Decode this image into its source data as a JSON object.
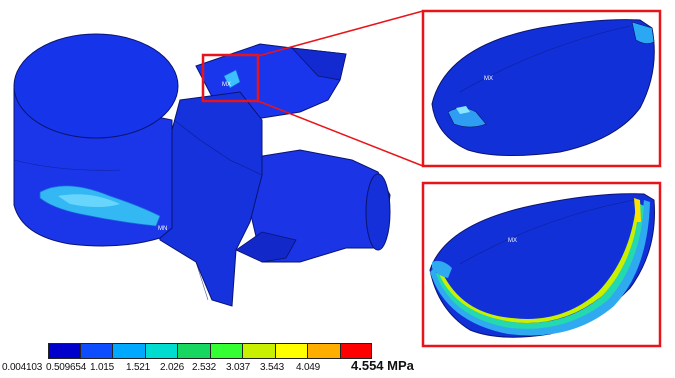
{
  "legend": {
    "colors": [
      "#0000cc",
      "#0d4dff",
      "#00a8ff",
      "#00dcd0",
      "#16d860",
      "#33ff33",
      "#c8f000",
      "#ffff00",
      "#ffae00",
      "#ff0000"
    ],
    "ticks": [
      "0.004103",
      "0.509654",
      "1.015",
      "1.521",
      "2.026",
      "2.532",
      "3.037",
      "3.543",
      "4.049",
      "4.554"
    ],
    "unit": "MPa"
  },
  "markers": {
    "main_top": "MX",
    "main_side": "MN",
    "zoom_top": "MX",
    "zoom_bottom": "MX"
  },
  "colors": {
    "callout": "#e8141b",
    "body": "#1830e0",
    "body_dark": "#0f22b8",
    "edge": "#0a1470"
  }
}
